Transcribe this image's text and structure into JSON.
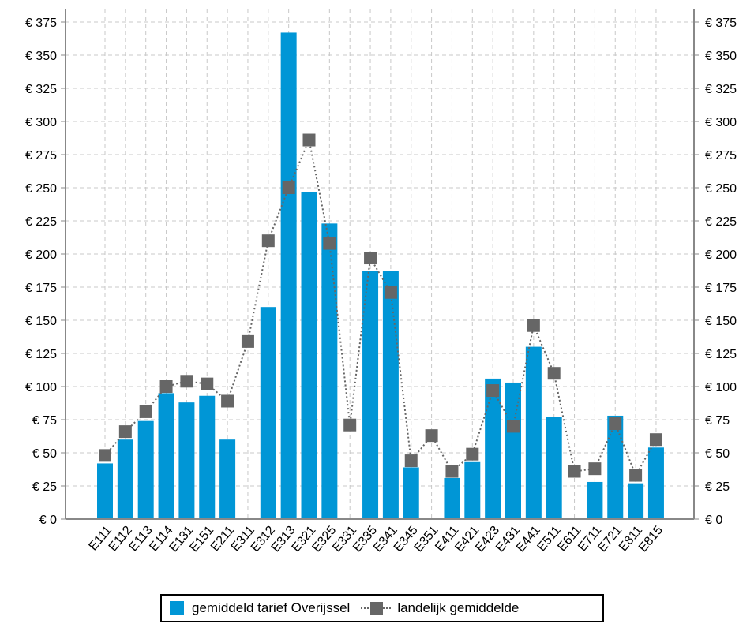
{
  "chart_data": {
    "type": "bar",
    "categories": [
      "E111",
      "E112",
      "E113",
      "E114",
      "E131",
      "E151",
      "E211",
      "E311",
      "E312",
      "E313",
      "E321",
      "E325",
      "E331",
      "E335",
      "E341",
      "E345",
      "E351",
      "E411",
      "E421",
      "E423",
      "E431",
      "E441",
      "E511",
      "E611",
      "E711",
      "E721",
      "E811",
      "E815"
    ],
    "series": [
      {
        "name": "gemiddeld tarief Overijssel",
        "type": "bar",
        "color": "#0096d6",
        "values": [
          42,
          60,
          74,
          95,
          88,
          93,
          60,
          null,
          160,
          367,
          247,
          223,
          null,
          187,
          187,
          39,
          null,
          31,
          43,
          106,
          103,
          130,
          77,
          null,
          28,
          78,
          27,
          54
        ]
      },
      {
        "name": "landelijk gemiddelde",
        "type": "line",
        "color": "#666666",
        "values": [
          48,
          66,
          81,
          100,
          104,
          102,
          89,
          134,
          210,
          250,
          286,
          208,
          71,
          197,
          171,
          44,
          63,
          36,
          49,
          97,
          70,
          146,
          110,
          36,
          38,
          72,
          33,
          60
        ]
      }
    ],
    "ylim": [
      0,
      375
    ],
    "yticks": [
      "€ 0",
      "€ 25",
      "€ 50",
      "€ 75",
      "€ 100",
      "€ 125",
      "€ 150",
      "€ 175",
      "€ 200",
      "€ 225",
      "€ 250",
      "€ 275",
      "€ 300",
      "€ 325",
      "€ 350",
      "€ 375"
    ],
    "grid": true,
    "legend_position": "bottom"
  }
}
